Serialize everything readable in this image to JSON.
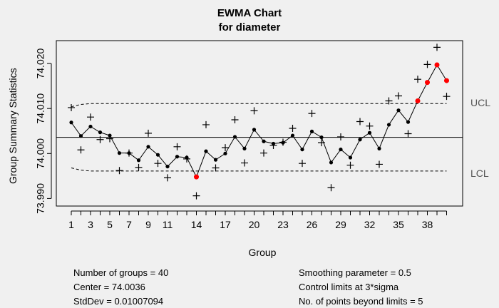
{
  "chart_data": {
    "type": "line",
    "title": "EWMA Chart",
    "subtitle": "for diameter",
    "xlabel": "Group",
    "ylabel": "Group Summary Statistics",
    "xlim": [
      1,
      40
    ],
    "ylim": [
      73.99,
      74.02
    ],
    "x_ticks": [
      1,
      3,
      5,
      7,
      9,
      11,
      14,
      17,
      20,
      23,
      26,
      29,
      32,
      35,
      38
    ],
    "y_ticks": [
      "73.990",
      "74.000",
      "74.010",
      "74.020"
    ],
    "center": 74.0036,
    "ucl_label": "UCL",
    "lcl_label": "LCL",
    "grid": false,
    "ucl": [
      74.0104,
      74.0109,
      74.0111,
      74.0111,
      74.0111,
      74.0111,
      74.0111,
      74.0111,
      74.0111,
      74.0111,
      74.0111,
      74.0111,
      74.0111,
      74.0111,
      74.0111,
      74.0111,
      74.0111,
      74.0111,
      74.0111,
      74.0111,
      74.0111,
      74.0111,
      74.0111,
      74.0111,
      74.0111,
      74.0111,
      74.0111,
      74.0111,
      74.0111,
      74.0111,
      74.0111,
      74.0111,
      74.0111,
      74.0111,
      74.0111,
      74.0111,
      74.0111,
      74.0111,
      74.0111,
      74.0111
    ],
    "lcl": [
      73.9968,
      73.9963,
      73.9961,
      73.9961,
      73.9961,
      73.9961,
      73.9961,
      73.9961,
      73.9961,
      73.9961,
      73.9961,
      73.9961,
      73.9961,
      73.9961,
      73.9961,
      73.9961,
      73.9961,
      73.9961,
      73.9961,
      73.9961,
      73.9961,
      73.9961,
      73.9961,
      73.9961,
      73.9961,
      73.9961,
      73.9961,
      73.9961,
      73.9961,
      73.9961,
      73.9961,
      73.9961,
      73.9961,
      73.9961,
      73.9961,
      73.9961,
      73.9961,
      73.9961,
      73.9961,
      73.9961
    ],
    "series": [
      {
        "name": "statistics",
        "marker": "+",
        "values": [
          74.0102,
          74.0008,
          74.0081,
          74.0031,
          74.0033,
          73.9962,
          74.0001,
          73.9969,
          74.0045,
          73.9978,
          73.9946,
          74.0015,
          73.9988,
          73.9906,
          74.0064,
          73.9968,
          74.0013,
          74.0075,
          73.9979,
          74.0095,
          74.0001,
          74.0018,
          74.0025,
          74.0056,
          73.9978,
          74.0089,
          74.0024,
          73.9924,
          74.0037,
          73.9974,
          74.0071,
          74.0061,
          73.9976,
          74.0117,
          74.0128,
          74.0044,
          74.0165,
          74.0198,
          74.0236,
          74.0127
        ]
      },
      {
        "name": "ewma",
        "values": [
          74.0069,
          74.0039,
          74.006,
          74.0047,
          74.004,
          74.0001,
          74.0001,
          73.9985,
          74.0015,
          73.9997,
          73.9971,
          73.9993,
          73.9991,
          73.9948,
          74.0005,
          73.9986,
          74.0,
          74.0037,
          74.0011,
          74.0053,
          74.0027,
          74.0022,
          74.0024,
          74.004,
          74.0009,
          74.0049,
          74.0036,
          73.998,
          74.0009,
          73.9991,
          74.0031,
          74.0046,
          74.0011,
          74.0064,
          74.0096,
          74.007,
          74.0117,
          74.0158,
          74.0197,
          74.0162
        ],
        "beyond_limits": [
          14,
          37,
          38,
          39,
          40
        ],
        "beyond_color": "#ff0000"
      }
    ],
    "stats": {
      "groups": "Number of groups = 40",
      "center": "Center = 74.0036",
      "stddev": "StdDev = 0.01007094",
      "smoothing": "Smoothing parameter =  0.5",
      "control_limits": "Control limits at 3*sigma",
      "beyond": "No. of points beyond limits = 5"
    }
  }
}
